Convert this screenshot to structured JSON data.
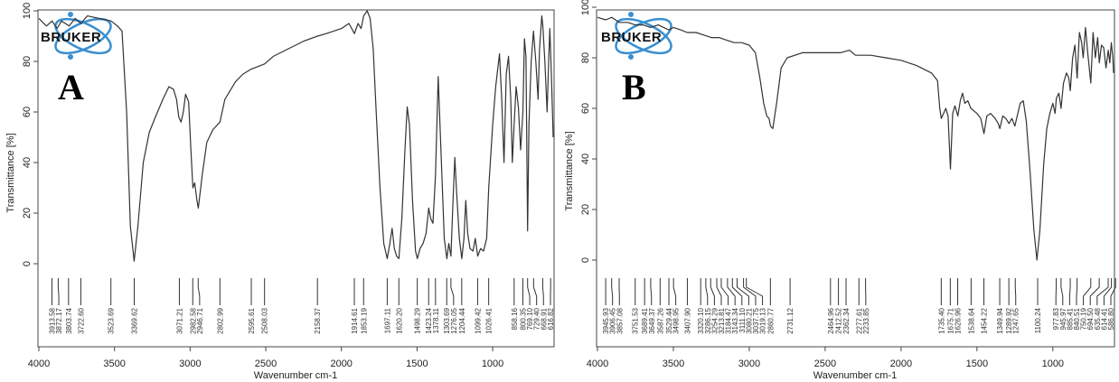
{
  "chart_data": [
    {
      "type": "line",
      "panel_label": "A",
      "logo": "BRUKER",
      "xlabel": "Wavenumber cm-1",
      "ylabel": "Transmittance [%]",
      "xlim": [
        4000,
        600
      ],
      "ylim": [
        0,
        100
      ],
      "xticks": [
        4000,
        3500,
        3000,
        2500,
        2000,
        1500,
        1000
      ],
      "yticks": [
        0,
        20,
        40,
        60,
        80,
        100
      ],
      "grid": false,
      "line_color": "#333333",
      "peak_labels": [
        "3913.58",
        "3872.17",
        "3803.74",
        "3722.60",
        "3523.69",
        "3369.62",
        "3071.21",
        "2982.58",
        "2946.71",
        "2802.99",
        "2595.61",
        "2508.03",
        "2158.37",
        "1914.61",
        "1853.19",
        "1697.11",
        "1620.20",
        "1498.29",
        "1423.24",
        "1378.11",
        "1303.69",
        "1276.05",
        "1204.44",
        "1099.42",
        "1026.41",
        "858.16",
        "800.35",
        "769.10",
        "729.40",
        "668.91",
        "616.82"
      ],
      "points": [
        [
          4000,
          97
        ],
        [
          3950,
          94
        ],
        [
          3913,
          96
        ],
        [
          3880,
          93
        ],
        [
          3850,
          96
        ],
        [
          3800,
          94
        ],
        [
          3760,
          97
        ],
        [
          3722,
          95
        ],
        [
          3680,
          98
        ],
        [
          3600,
          97
        ],
        [
          3523,
          96
        ],
        [
          3480,
          94
        ],
        [
          3450,
          92
        ],
        [
          3420,
          60
        ],
        [
          3395,
          15
        ],
        [
          3370,
          1
        ],
        [
          3345,
          15
        ],
        [
          3310,
          40
        ],
        [
          3270,
          52
        ],
        [
          3230,
          58
        ],
        [
          3180,
          65
        ],
        [
          3140,
          70
        ],
        [
          3110,
          69
        ],
        [
          3090,
          65
        ],
        [
          3075,
          58
        ],
        [
          3060,
          56
        ],
        [
          3045,
          60
        ],
        [
          3030,
          67
        ],
        [
          3010,
          64
        ],
        [
          2995,
          45
        ],
        [
          2982,
          30
        ],
        [
          2970,
          32
        ],
        [
          2955,
          25
        ],
        [
          2946,
          22
        ],
        [
          2920,
          35
        ],
        [
          2890,
          48
        ],
        [
          2850,
          53
        ],
        [
          2803,
          56
        ],
        [
          2770,
          65
        ],
        [
          2700,
          72
        ],
        [
          2650,
          75
        ],
        [
          2595,
          77
        ],
        [
          2550,
          78
        ],
        [
          2508,
          79
        ],
        [
          2450,
          82
        ],
        [
          2350,
          85
        ],
        [
          2250,
          88
        ],
        [
          2158,
          90
        ],
        [
          2100,
          91
        ],
        [
          2000,
          93
        ],
        [
          1950,
          95
        ],
        [
          1914,
          91
        ],
        [
          1890,
          95
        ],
        [
          1870,
          93
        ],
        [
          1853,
          98
        ],
        [
          1830,
          100
        ],
        [
          1810,
          97
        ],
        [
          1790,
          85
        ],
        [
          1770,
          60
        ],
        [
          1745,
          30
        ],
        [
          1720,
          8
        ],
        [
          1697,
          2
        ],
        [
          1680,
          8
        ],
        [
          1665,
          14
        ],
        [
          1650,
          6
        ],
        [
          1635,
          3
        ],
        [
          1620,
          2
        ],
        [
          1600,
          18
        ],
        [
          1580,
          45
        ],
        [
          1565,
          62
        ],
        [
          1550,
          55
        ],
        [
          1530,
          25
        ],
        [
          1510,
          5
        ],
        [
          1498,
          2
        ],
        [
          1480,
          6
        ],
        [
          1460,
          8
        ],
        [
          1440,
          12
        ],
        [
          1423,
          22
        ],
        [
          1410,
          18
        ],
        [
          1395,
          16
        ],
        [
          1378,
          35
        ],
        [
          1360,
          74
        ],
        [
          1345,
          50
        ],
        [
          1320,
          10
        ],
        [
          1303,
          2
        ],
        [
          1290,
          8
        ],
        [
          1276,
          3
        ],
        [
          1262,
          25
        ],
        [
          1250,
          42
        ],
        [
          1240,
          30
        ],
        [
          1220,
          10
        ],
        [
          1204,
          2
        ],
        [
          1190,
          10
        ],
        [
          1178,
          25
        ],
        [
          1165,
          12
        ],
        [
          1150,
          6
        ],
        [
          1130,
          5
        ],
        [
          1115,
          10
        ],
        [
          1099,
          3
        ],
        [
          1080,
          6
        ],
        [
          1060,
          5
        ],
        [
          1040,
          10
        ],
        [
          1026,
          30
        ],
        [
          1000,
          55
        ],
        [
          980,
          70
        ],
        [
          955,
          83
        ],
        [
          940,
          65
        ],
        [
          925,
          40
        ],
        [
          910,
          75
        ],
        [
          895,
          82
        ],
        [
          880,
          65
        ],
        [
          870,
          40
        ],
        [
          858,
          55
        ],
        [
          845,
          70
        ],
        [
          830,
          62
        ],
        [
          815,
          45
        ],
        [
          800,
          60
        ],
        [
          790,
          89
        ],
        [
          780,
          82
        ],
        [
          769,
          13
        ],
        [
          760,
          55
        ],
        [
          745,
          80
        ],
        [
          730,
          92
        ],
        [
          715,
          80
        ],
        [
          700,
          65
        ],
        [
          690,
          85
        ],
        [
          675,
          98
        ],
        [
          668,
          94
        ],
        [
          655,
          80
        ],
        [
          640,
          60
        ],
        [
          630,
          80
        ],
        [
          622,
          93
        ],
        [
          612,
          75
        ],
        [
          600,
          50
        ]
      ]
    },
    {
      "type": "line",
      "panel_label": "B",
      "logo": "BRUKER",
      "xlabel": "Wavenumber cm-1",
      "ylabel": "Transmittance [%]",
      "xlim": [
        4000,
        600
      ],
      "ylim": [
        0,
        100
      ],
      "xticks": [
        4000,
        3500,
        3000,
        2500,
        2000,
        1500,
        1000
      ],
      "yticks": [
        0,
        20,
        40,
        60,
        80,
        100
      ],
      "grid": false,
      "line_color": "#333333",
      "peak_labels": [
        "3945.93",
        "3906.45",
        "3857.08",
        "3751.53",
        "3689.41",
        "3649.37",
        "3587.26",
        "3529.44",
        "3498.95",
        "3407.90",
        "3320.10",
        "3286.15",
        "3254.29",
        "3213.81",
        "3184.47",
        "3143.34",
        "3111.10",
        "3080.21",
        "3037.75",
        "3019.13",
        "2860.77",
        "2731.12",
        "2464.96",
        "2412.52",
        "2362.34",
        "2277.61",
        "2233.85",
        "1735.40",
        "1675.71",
        "1626.96",
        "1538.64",
        "1454.22",
        "1349.94",
        "1289.92",
        "1247.65",
        "1100.24",
        "977.83",
        "945.97",
        "885.41",
        "840.51",
        "750.19",
        "694.50",
        "635.48",
        "614.41",
        "586.80"
      ],
      "points": [
        [
          4000,
          96
        ],
        [
          3945,
          95
        ],
        [
          3906,
          96
        ],
        [
          3857,
          94
        ],
        [
          3800,
          94
        ],
        [
          3751,
          93
        ],
        [
          3700,
          93
        ],
        [
          3649,
          92
        ],
        [
          3600,
          93
        ],
        [
          3529,
          91
        ],
        [
          3500,
          92
        ],
        [
          3450,
          91
        ],
        [
          3408,
          90
        ],
        [
          3350,
          90
        ],
        [
          3300,
          89
        ],
        [
          3250,
          88
        ],
        [
          3200,
          88
        ],
        [
          3150,
          87
        ],
        [
          3100,
          86
        ],
        [
          3050,
          86
        ],
        [
          3000,
          85
        ],
        [
          2960,
          82
        ],
        [
          2930,
          72
        ],
        [
          2905,
          62
        ],
        [
          2885,
          57
        ],
        [
          2870,
          56
        ],
        [
          2860,
          53
        ],
        [
          2845,
          52
        ],
        [
          2820,
          62
        ],
        [
          2790,
          76
        ],
        [
          2750,
          80
        ],
        [
          2650,
          82
        ],
        [
          2500,
          82
        ],
        [
          2400,
          82
        ],
        [
          2340,
          83
        ],
        [
          2300,
          81
        ],
        [
          2200,
          81
        ],
        [
          2100,
          80
        ],
        [
          2000,
          79
        ],
        [
          1900,
          77
        ],
        [
          1800,
          74
        ],
        [
          1760,
          71
        ],
        [
          1745,
          60
        ],
        [
          1735,
          56
        ],
        [
          1720,
          58
        ],
        [
          1705,
          60
        ],
        [
          1690,
          57
        ],
        [
          1675,
          36
        ],
        [
          1660,
          58
        ],
        [
          1645,
          61
        ],
        [
          1626,
          57
        ],
        [
          1610,
          63
        ],
        [
          1595,
          66
        ],
        [
          1580,
          62
        ],
        [
          1560,
          63
        ],
        [
          1540,
          60
        ],
        [
          1520,
          59
        ],
        [
          1500,
          58
        ],
        [
          1475,
          56
        ],
        [
          1454,
          50
        ],
        [
          1435,
          57
        ],
        [
          1410,
          58
        ],
        [
          1380,
          56
        ],
        [
          1360,
          54
        ],
        [
          1349,
          52
        ],
        [
          1330,
          57
        ],
        [
          1310,
          56
        ],
        [
          1289,
          54
        ],
        [
          1270,
          56
        ],
        [
          1250,
          53
        ],
        [
          1235,
          57
        ],
        [
          1215,
          62
        ],
        [
          1195,
          63
        ],
        [
          1175,
          55
        ],
        [
          1150,
          35
        ],
        [
          1125,
          12
        ],
        [
          1105,
          0
        ],
        [
          1085,
          12
        ],
        [
          1060,
          38
        ],
        [
          1040,
          52
        ],
        [
          1020,
          58
        ],
        [
          1000,
          62
        ],
        [
          985,
          58
        ],
        [
          977,
          64
        ],
        [
          960,
          66
        ],
        [
          946,
          60
        ],
        [
          930,
          70
        ],
        [
          910,
          74
        ],
        [
          895,
          72
        ],
        [
          885,
          67
        ],
        [
          870,
          80
        ],
        [
          855,
          85
        ],
        [
          840,
          72
        ],
        [
          825,
          90
        ],
        [
          810,
          86
        ],
        [
          800,
          80
        ],
        [
          785,
          92
        ],
        [
          770,
          82
        ],
        [
          750,
          70
        ],
        [
          735,
          90
        ],
        [
          720,
          80
        ],
        [
          705,
          88
        ],
        [
          694,
          78
        ],
        [
          680,
          85
        ],
        [
          665,
          84
        ],
        [
          650,
          76
        ],
        [
          635,
          83
        ],
        [
          625,
          78
        ],
        [
          615,
          86
        ],
        [
          605,
          80
        ],
        [
          600,
          74
        ]
      ]
    }
  ]
}
